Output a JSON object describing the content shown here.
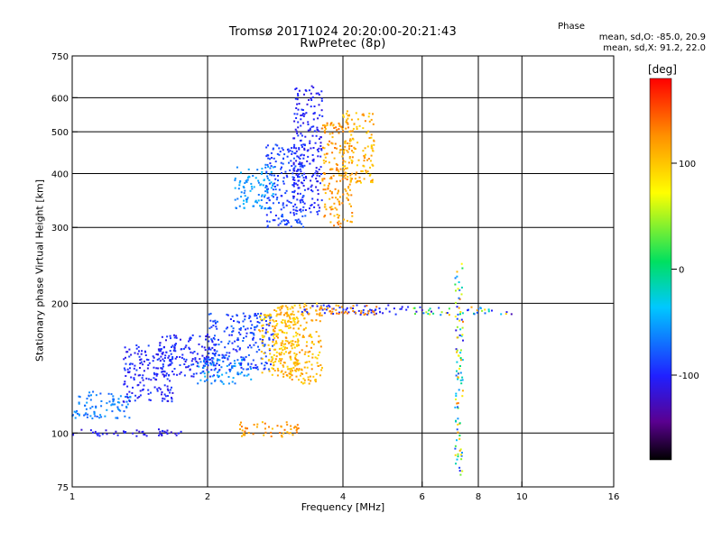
{
  "chart_data": {
    "type": "scatter",
    "title": "Tromsø 20171024 20:20:00-20:21:43",
    "subtitle": "RwPretec (8p)",
    "xlabel": "Frequency [MHz]",
    "ylabel": "Stationary phase Virtual Height [km]",
    "x_scale": "log",
    "y_scale": "log",
    "xlim": [
      1,
      16
    ],
    "ylim": [
      75,
      750
    ],
    "x_ticks": [
      1,
      2,
      4,
      6,
      8,
      10,
      16
    ],
    "y_ticks": [
      75,
      100,
      200,
      300,
      400,
      500,
      600,
      750
    ],
    "grid_x": [
      2,
      4,
      6,
      8,
      10
    ],
    "grid_y": [
      100,
      200,
      300,
      400,
      500,
      600
    ],
    "colorbar": {
      "label": "[deg]",
      "range": [
        -180,
        180
      ],
      "ticks": [
        100,
        0,
        -100
      ],
      "colormap": "rainbow",
      "stops": [
        "#000000",
        "#5a0090",
        "#2020ff",
        "#00c8ff",
        "#00e060",
        "#ffff00",
        "#ff9000",
        "#ff0000"
      ]
    },
    "stats": {
      "header": "Phase",
      "o_mode": "mean, sd,O: -85.0, 20.9",
      "x_mode": "mean, sd,X:  91.2, 22.0"
    },
    "clusters": [
      {
        "x": [
          1.0,
          1.75
        ],
        "y": [
          98,
          102
        ],
        "phase": [
          -120,
          -95
        ]
      },
      {
        "x": [
          1.0,
          1.35
        ],
        "y": [
          108,
          125
        ],
        "phase": [
          -80,
          -50
        ]
      },
      {
        "x": [
          1.3,
          1.7
        ],
        "y": [
          118,
          160
        ],
        "phase": [
          -115,
          -85
        ]
      },
      {
        "x": [
          1.55,
          2.1
        ],
        "y": [
          135,
          170
        ],
        "phase": [
          -115,
          -85
        ]
      },
      {
        "x": [
          1.9,
          2.5
        ],
        "y": [
          130,
          150
        ],
        "phase": [
          -75,
          -40
        ]
      },
      {
        "x": [
          2.0,
          2.8
        ],
        "y": [
          140,
          190
        ],
        "phase": [
          -105,
          -70
        ]
      },
      {
        "x": [
          2.6,
          3.2
        ],
        "y": [
          135,
          190
        ],
        "phase": [
          80,
          120
        ]
      },
      {
        "x": [
          2.8,
          3.6
        ],
        "y": [
          130,
          200
        ],
        "phase": [
          90,
          130
        ]
      },
      {
        "x": [
          2.3,
          3.2
        ],
        "y": [
          98,
          106
        ],
        "phase": [
          100,
          140
        ]
      },
      {
        "x": [
          3.2,
          5.6
        ],
        "y": [
          188,
          198
        ],
        "phase": [
          -110,
          -90
        ]
      },
      {
        "x": [
          3.3,
          4.8
        ],
        "y": [
          188,
          198
        ],
        "phase": [
          110,
          140
        ]
      },
      {
        "x": [
          5.6,
          9.5
        ],
        "y": [
          188,
          196
        ],
        "phase": [
          -130,
          140
        ]
      },
      {
        "x": [
          2.3,
          2.8
        ],
        "y": [
          330,
          420
        ],
        "phase": [
          -70,
          -40
        ]
      },
      {
        "x": [
          2.7,
          3.3
        ],
        "y": [
          300,
          470
        ],
        "phase": [
          -100,
          -75
        ]
      },
      {
        "x": [
          3.1,
          3.6
        ],
        "y": [
          320,
          640
        ],
        "phase": [
          -115,
          -90
        ]
      },
      {
        "x": [
          3.6,
          4.2
        ],
        "y": [
          300,
          530
        ],
        "phase": [
          100,
          140
        ]
      },
      {
        "x": [
          4.0,
          4.7
        ],
        "y": [
          380,
          560
        ],
        "phase": [
          90,
          130
        ]
      },
      {
        "x": [
          7.1,
          7.4
        ],
        "y": [
          80,
          250
        ],
        "phase": [
          -120,
          140
        ]
      }
    ]
  }
}
